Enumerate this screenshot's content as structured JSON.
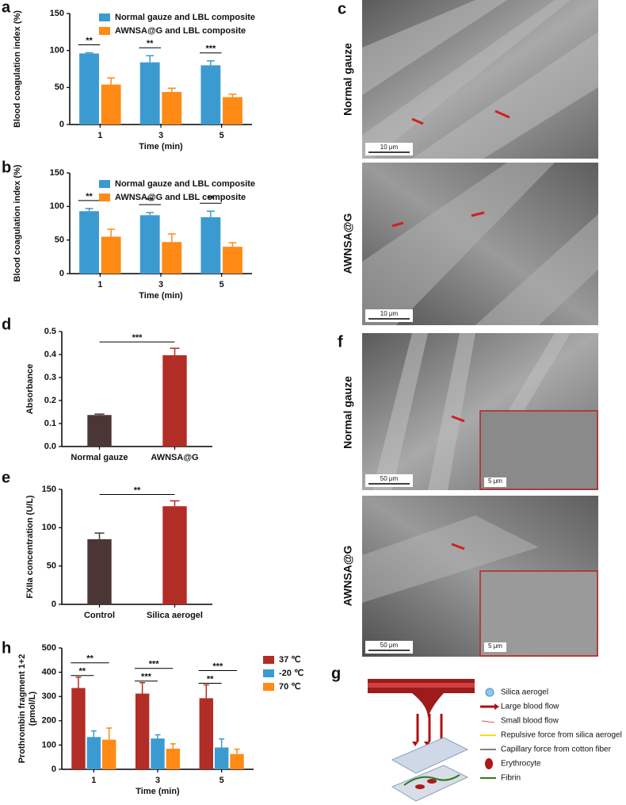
{
  "chart_data": [
    {
      "type": "bar",
      "panel": "a",
      "ylabel": "Blood coagulation index (%)",
      "xlabel": "Time (min)",
      "categories": [
        "1",
        "3",
        "5"
      ],
      "ylim": [
        0,
        150
      ],
      "yticks": [
        0,
        50,
        100,
        150
      ],
      "legend": "upper right",
      "series": [
        {
          "name": "Normal gauze and LBL composite",
          "color": "#3b9bd1",
          "values": [
            96,
            84,
            80
          ],
          "errors": [
            1,
            9,
            6
          ]
        },
        {
          "name": "AWNSA@G and LBL composite",
          "color": "#ff8a16",
          "values": [
            54,
            44,
            37
          ],
          "errors": [
            9,
            5,
            4
          ]
        }
      ],
      "significance": [
        "**",
        "**",
        "***"
      ]
    },
    {
      "type": "bar",
      "panel": "b",
      "ylabel": "Blood coagulation index (%)",
      "xlabel": "Time (min)",
      "categories": [
        "1",
        "3",
        "5"
      ],
      "ylim": [
        0,
        150
      ],
      "yticks": [
        0,
        50,
        100,
        150
      ],
      "legend": "upper right",
      "series": [
        {
          "name": "Normal gauze and LBL composite",
          "color": "#3b9bd1",
          "values": [
            93,
            87,
            84
          ],
          "errors": [
            4,
            4,
            9
          ]
        },
        {
          "name": "AWNSA@G and LBL composite",
          "color": "#ff8a16",
          "values": [
            55,
            47,
            40
          ],
          "errors": [
            11,
            12,
            6
          ]
        }
      ],
      "significance": [
        "**",
        "**",
        "**"
      ]
    },
    {
      "type": "bar",
      "panel": "d",
      "ylabel": "Absorbance",
      "categories": [
        "Normal gauze",
        "AWNSA@G"
      ],
      "values": [
        0.137,
        0.397
      ],
      "errors": [
        0.004,
        0.03
      ],
      "colors": [
        "#4a3735",
        "#b32d27"
      ],
      "ylim": [
        0,
        0.5
      ],
      "yticks": [
        {
          "value": 0,
          "label": "0.0"
        },
        0.1,
        0.2,
        0.3,
        0.4,
        0.5
      ],
      "significance": "***"
    },
    {
      "type": "bar",
      "panel": "e",
      "ylabel": "FXIIa concentration (U/L)",
      "categories": [
        "Control",
        "Silica aerogel"
      ],
      "values": [
        85,
        128
      ],
      "errors": [
        8,
        7
      ],
      "colors": [
        "#4a3735",
        "#b32d27"
      ],
      "ylim": [
        0,
        150
      ],
      "yticks": [
        0,
        50,
        100,
        150
      ],
      "significance": "**"
    },
    {
      "type": "bar",
      "panel": "h",
      "ylabel": [
        "Prothrombin fragment 1+2",
        "(pmol/L)"
      ],
      "xlabel": "Time (min)",
      "categories": [
        "1",
        "3",
        "5"
      ],
      "ylim": [
        0,
        500
      ],
      "yticks": [
        0,
        100,
        200,
        300,
        400,
        500
      ],
      "legend": "upper right",
      "series": [
        {
          "name": "37 ℃",
          "color": "#b32d27",
          "values": [
            335,
            312,
            293
          ],
          "errors": [
            45,
            45,
            55
          ]
        },
        {
          "name": "-20 ℃",
          "color": "#3b9bd1",
          "values": [
            133,
            127,
            90
          ],
          "errors": [
            25,
            15,
            35
          ]
        },
        {
          "name": "70 ℃",
          "color": "#ff8a16",
          "values": [
            122,
            85,
            63
          ],
          "errors": [
            48,
            20,
            20
          ]
        }
      ],
      "significance": [
        [
          "**",
          "**"
        ],
        [
          "***",
          "***"
        ],
        [
          "**",
          "***"
        ]
      ]
    }
  ],
  "sem_panels": [
    {
      "panel": "c",
      "images": [
        {
          "label": "Normal gauze",
          "scale_bar": "10 μm"
        },
        {
          "label": "AWNSA@G",
          "scale_bar": "10 μm"
        }
      ]
    },
    {
      "panel": "f",
      "images": [
        {
          "label": "Normal gauze",
          "scale_bar": "50 μm",
          "inset_scale_bar": "5 μm"
        },
        {
          "label": "AWNSA@G",
          "scale_bar": "50 μm",
          "inset_scale_bar": "5 μm"
        }
      ]
    }
  ],
  "diagram": {
    "panel": "g",
    "legend": [
      "Silica aerogel",
      "Large blood flow",
      "Small blood flow",
      "Repulsive force from silica aerogel",
      "Capillary force from cotton fiber",
      "Erythrocyte",
      "Fibrin"
    ]
  }
}
